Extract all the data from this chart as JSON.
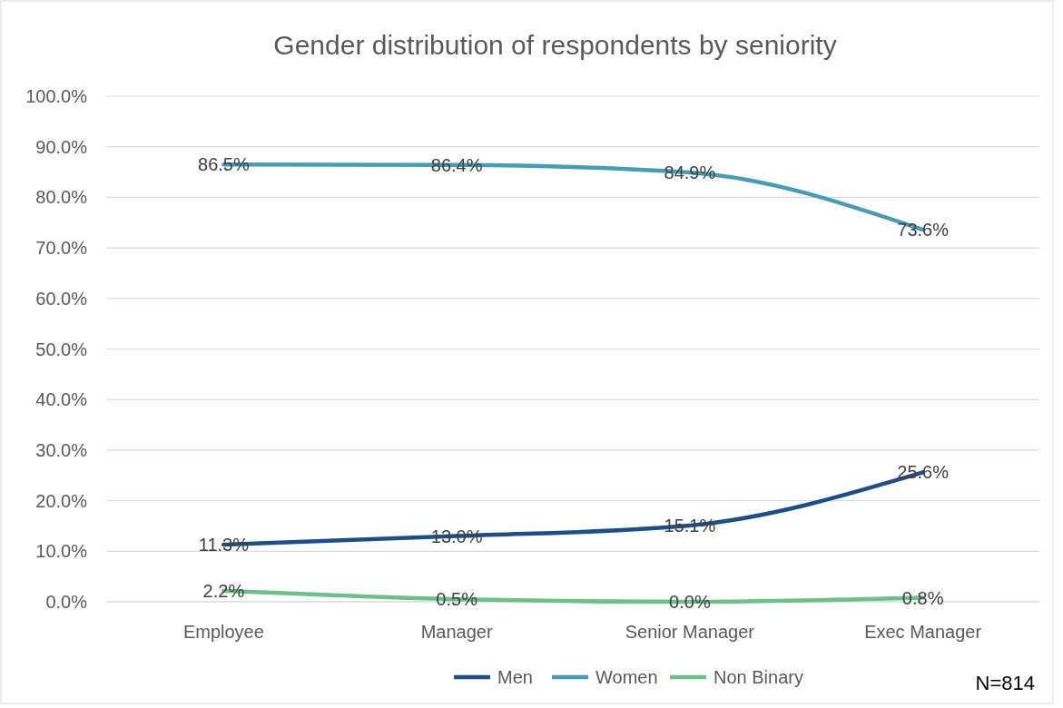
{
  "chart_data": {
    "type": "line",
    "title": "Gender distribution of respondents by seniority",
    "categories": [
      "Employee",
      "Manager",
      "Senior Manager",
      "Exec Manager"
    ],
    "series": [
      {
        "name": "Men",
        "color": "#1f4e87",
        "values": [
          11.3,
          13.0,
          15.1,
          25.6
        ],
        "value_labels": [
          "11.3%",
          "13.0%",
          "15.1%",
          "25.6%"
        ]
      },
      {
        "name": "Women",
        "color": "#4a9bb5",
        "values": [
          86.5,
          86.4,
          84.9,
          73.6
        ],
        "value_labels": [
          "86.5%",
          "86.4%",
          "84.9%",
          "73.6%"
        ]
      },
      {
        "name": "Non Binary",
        "color": "#6fbf8a",
        "values": [
          2.2,
          0.5,
          0.0,
          0.8
        ],
        "value_labels": [
          "2.2%",
          "0.5%",
          "0.0%",
          "0.8%"
        ]
      }
    ],
    "ylim": [
      0,
      100
    ],
    "yticks": [
      {
        "value": 0,
        "label": "0.0%"
      },
      {
        "value": 10,
        "label": "10.0%"
      },
      {
        "value": 20,
        "label": "20.0%"
      },
      {
        "value": 30,
        "label": "30.0%"
      },
      {
        "value": 40,
        "label": "40.0%"
      },
      {
        "value": 50,
        "label": "50.0%"
      },
      {
        "value": 60,
        "label": "60.0%"
      },
      {
        "value": 70,
        "label": "70.0%"
      },
      {
        "value": 80,
        "label": "80.0%"
      },
      {
        "value": 90,
        "label": "90.0%"
      },
      {
        "value": 100,
        "label": "100.0%"
      }
    ],
    "grid": "y",
    "legend": "bottom",
    "marker": "none",
    "line_style": "solid",
    "annotations": [
      "N=814"
    ]
  }
}
